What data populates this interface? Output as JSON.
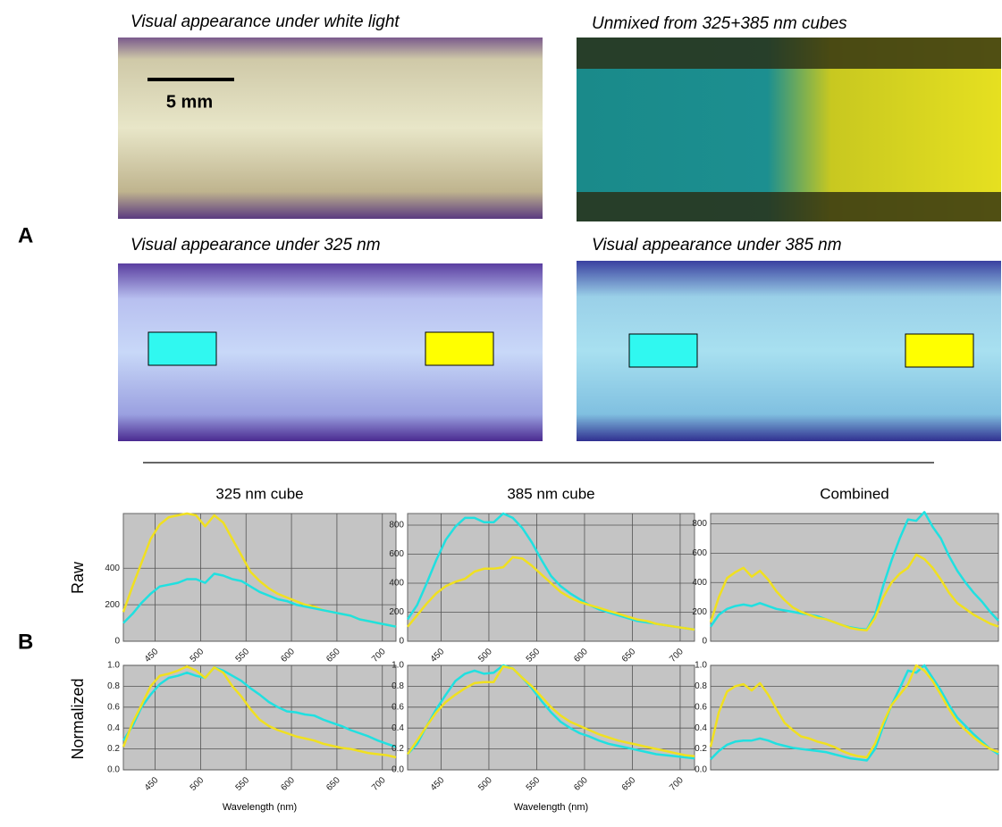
{
  "panel_a": {
    "label": "A",
    "scale_bar": "5 mm",
    "captions": [
      "Visual appearance under white light",
      "Unmixed from 325+385 nm cubes",
      "Visual appearance under 325 nm",
      "Visual appearance under 385 nm"
    ]
  },
  "panel_b": {
    "label": "B",
    "row_labels": [
      "Raw",
      "Normalized"
    ]
  },
  "chart_data": [
    {
      "type": "line",
      "title": "325 nm cube",
      "x": [
        415,
        425,
        435,
        445,
        455,
        465,
        475,
        485,
        495,
        505,
        515,
        525,
        535,
        545,
        555,
        565,
        575,
        585,
        595,
        605,
        615,
        625,
        635,
        645,
        655,
        665,
        675,
        685,
        695,
        705,
        715
      ],
      "xlim": [
        415,
        715
      ],
      "xticks": [
        450,
        500,
        550,
        600,
        650,
        700
      ],
      "ylim": [
        0,
        700
      ],
      "yticks": [
        0,
        200,
        400
      ],
      "grid": true,
      "series": [
        {
          "color": "#f0e020",
          "values": [
            160,
            300,
            430,
            560,
            640,
            680,
            690,
            700,
            690,
            630,
            690,
            650,
            560,
            470,
            380,
            330,
            290,
            260,
            240,
            220,
            200,
            190,
            170,
            160,
            150,
            140,
            120,
            110,
            100,
            90,
            80
          ]
        },
        {
          "color": "#20e0e0",
          "values": [
            100,
            150,
            210,
            260,
            300,
            310,
            320,
            340,
            340,
            320,
            370,
            360,
            340,
            330,
            300,
            270,
            250,
            230,
            220,
            200,
            190,
            180,
            170,
            160,
            150,
            140,
            120,
            110,
            100,
            90,
            80
          ]
        }
      ]
    },
    {
      "type": "line",
      "title": "385 nm cube",
      "x": [
        415,
        425,
        435,
        445,
        455,
        465,
        475,
        485,
        495,
        505,
        515,
        525,
        535,
        545,
        555,
        565,
        575,
        585,
        595,
        605,
        615,
        625,
        635,
        645,
        655,
        665,
        675,
        685,
        695,
        705,
        715
      ],
      "xlim": [
        415,
        715
      ],
      "xticks": [
        450,
        500,
        550,
        600,
        650,
        700
      ],
      "ylim": [
        0,
        880
      ],
      "yticks": [
        0,
        200,
        400,
        600,
        800
      ],
      "grid": true,
      "series": [
        {
          "color": "#20e0e0",
          "values": [
            150,
            250,
            400,
            560,
            700,
            790,
            850,
            850,
            820,
            820,
            880,
            850,
            780,
            680,
            560,
            450,
            380,
            330,
            290,
            250,
            220,
            200,
            180,
            160,
            140,
            130,
            120,
            110,
            100,
            90,
            80
          ]
        },
        {
          "color": "#f0e020",
          "values": [
            100,
            180,
            260,
            330,
            380,
            410,
            430,
            480,
            500,
            500,
            510,
            580,
            570,
            520,
            460,
            400,
            340,
            300,
            270,
            250,
            230,
            210,
            190,
            170,
            150,
            140,
            120,
            110,
            100,
            90,
            80
          ]
        }
      ]
    },
    {
      "type": "line",
      "title": "Combined",
      "categories": [
        null,
        null,
        null,
        null,
        null,
        null,
        null,
        null,
        null,
        null,
        null,
        null,
        null,
        null,
        null,
        null,
        null,
        null,
        null,
        null,
        null,
        null,
        null,
        null,
        null,
        null,
        null,
        null,
        null,
        null,
        null,
        null,
        null,
        null,
        null,
        null
      ],
      "ylim": [
        0,
        870
      ],
      "yticks": [
        0,
        200,
        400,
        600,
        800
      ],
      "grid": true,
      "series": [
        {
          "color": "#20e0e0",
          "values": [
            100,
            180,
            220,
            240,
            250,
            240,
            260,
            240,
            220,
            210,
            200,
            190,
            180,
            170,
            150,
            130,
            110,
            95,
            85,
            80,
            180,
            380,
            550,
            700,
            830,
            820,
            880,
            780,
            700,
            580,
            480,
            400,
            330,
            270,
            200,
            140
          ]
        },
        {
          "color": "#f0e020",
          "values": [
            130,
            300,
            430,
            470,
            500,
            440,
            480,
            420,
            340,
            280,
            230,
            200,
            180,
            160,
            150,
            130,
            110,
            90,
            80,
            75,
            160,
            300,
            400,
            460,
            500,
            590,
            560,
            500,
            420,
            330,
            260,
            220,
            180,
            150,
            120,
            100
          ]
        }
      ]
    },
    {
      "type": "line",
      "xlabel": "Wavelength (nm)",
      "x": [
        415,
        425,
        435,
        445,
        455,
        465,
        475,
        485,
        495,
        505,
        515,
        525,
        535,
        545,
        555,
        565,
        575,
        585,
        595,
        605,
        615,
        625,
        635,
        645,
        655,
        665,
        675,
        685,
        695,
        705,
        715
      ],
      "xlim": [
        415,
        715
      ],
      "xticks": [
        450,
        500,
        550,
        600,
        650,
        700
      ],
      "ylim": [
        0,
        1
      ],
      "yticks": [
        {
          "value": 0,
          "label": "0.0"
        },
        0.2,
        0.4,
        0.6,
        0.8,
        {
          "value": 1,
          "label": "1.0"
        }
      ],
      "grid": true,
      "series": [
        {
          "color": "#20e0e0",
          "values": [
            0.28,
            0.42,
            0.6,
            0.72,
            0.82,
            0.88,
            0.9,
            0.93,
            0.9,
            0.88,
            0.98,
            0.95,
            0.9,
            0.85,
            0.78,
            0.72,
            0.65,
            0.6,
            0.56,
            0.55,
            0.53,
            0.52,
            0.48,
            0.45,
            0.42,
            0.38,
            0.35,
            0.32,
            0.28,
            0.25,
            0.22
          ]
        },
        {
          "color": "#f0e020",
          "values": [
            0.22,
            0.45,
            0.62,
            0.8,
            0.9,
            0.92,
            0.95,
            0.99,
            0.95,
            0.88,
            0.98,
            0.93,
            0.8,
            0.7,
            0.58,
            0.48,
            0.42,
            0.38,
            0.35,
            0.32,
            0.3,
            0.28,
            0.25,
            0.23,
            0.21,
            0.2,
            0.18,
            0.16,
            0.15,
            0.14,
            0.12
          ]
        }
      ]
    },
    {
      "type": "line",
      "xlabel": "Wavelength (nm)",
      "x": [
        415,
        425,
        435,
        445,
        455,
        465,
        475,
        485,
        495,
        505,
        515,
        525,
        535,
        545,
        555,
        565,
        575,
        585,
        595,
        605,
        615,
        625,
        635,
        645,
        655,
        665,
        675,
        685,
        695,
        705,
        715
      ],
      "xlim": [
        415,
        715
      ],
      "xticks": [
        450,
        500,
        550,
        600,
        650,
        700
      ],
      "ylim": [
        0,
        1
      ],
      "yticks": [
        {
          "value": 0,
          "label": "0.0"
        },
        0.2,
        0.4,
        0.6,
        0.8,
        {
          "value": 1,
          "label": "1.0"
        }
      ],
      "grid": true,
      "series": [
        {
          "color": "#20e0e0",
          "values": [
            0.15,
            0.25,
            0.42,
            0.58,
            0.72,
            0.85,
            0.92,
            0.95,
            0.92,
            0.93,
            1,
            0.97,
            0.88,
            0.78,
            0.66,
            0.55,
            0.46,
            0.4,
            0.35,
            0.32,
            0.28,
            0.25,
            0.23,
            0.21,
            0.19,
            0.17,
            0.15,
            0.14,
            0.13,
            0.12,
            0.11
          ]
        },
        {
          "color": "#f0e020",
          "values": [
            0.15,
            0.28,
            0.42,
            0.55,
            0.65,
            0.72,
            0.78,
            0.83,
            0.84,
            0.84,
            0.99,
            0.97,
            0.88,
            0.8,
            0.7,
            0.6,
            0.52,
            0.46,
            0.42,
            0.38,
            0.34,
            0.31,
            0.28,
            0.26,
            0.24,
            0.22,
            0.2,
            0.18,
            0.16,
            0.14,
            0.13
          ]
        }
      ]
    },
    {
      "type": "line",
      "categories": [
        null,
        null,
        null,
        null,
        null,
        null,
        null,
        null,
        null,
        null,
        null,
        null,
        null,
        null,
        null,
        null,
        null,
        null,
        null,
        null,
        null,
        null,
        null,
        null,
        null,
        null,
        null,
        null,
        null,
        null,
        null,
        null,
        null,
        null,
        null,
        null
      ],
      "ylim": [
        0,
        1
      ],
      "yticks": [
        {
          "value": 0,
          "label": "0.0"
        },
        0.2,
        0.4,
        0.6,
        0.8,
        {
          "value": 1,
          "label": "1.0"
        }
      ],
      "grid": true,
      "series": [
        {
          "color": "#20e0e0",
          "values": [
            0.1,
            0.18,
            0.24,
            0.27,
            0.28,
            0.28,
            0.3,
            0.28,
            0.25,
            0.23,
            0.21,
            0.2,
            0.19,
            0.18,
            0.17,
            0.15,
            0.13,
            0.11,
            0.1,
            0.09,
            0.2,
            0.42,
            0.62,
            0.78,
            0.95,
            0.93,
            1,
            0.88,
            0.76,
            0.62,
            0.5,
            0.42,
            0.34,
            0.27,
            0.2,
            0.15
          ]
        },
        {
          "color": "#f0e020",
          "values": [
            0.22,
            0.55,
            0.75,
            0.8,
            0.82,
            0.76,
            0.83,
            0.72,
            0.58,
            0.45,
            0.38,
            0.32,
            0.3,
            0.27,
            0.25,
            0.22,
            0.18,
            0.15,
            0.13,
            0.12,
            0.25,
            0.45,
            0.62,
            0.72,
            0.82,
            1,
            0.95,
            0.85,
            0.72,
            0.58,
            0.46,
            0.38,
            0.31,
            0.25,
            0.2,
            0.17
          ]
        }
      ]
    }
  ]
}
